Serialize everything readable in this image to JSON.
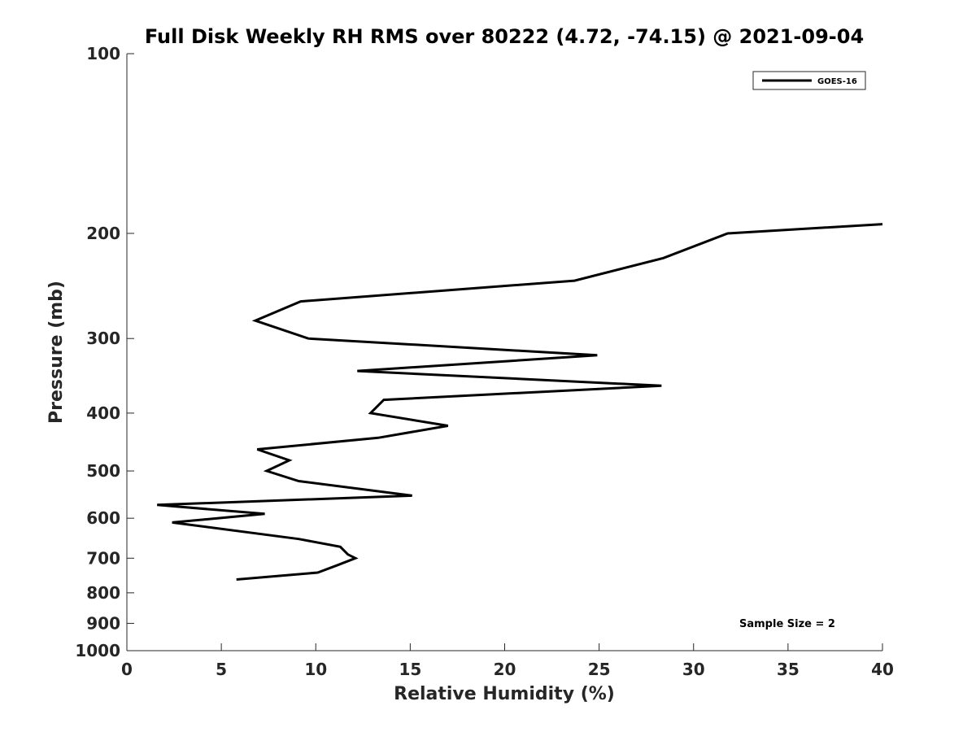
{
  "chart_data": {
    "type": "line",
    "title": "Full Disk Weekly RH RMS over 80222 (4.72, -74.15) @ 2021-09-04",
    "xlabel": "Relative Humidity (%)",
    "ylabel": "Pressure (mb)",
    "xlim": [
      0,
      40
    ],
    "ylim": [
      100,
      1000
    ],
    "y_scale": "log",
    "y_reversed": true,
    "grid": false,
    "legend_position": "top-right",
    "x_ticks": [
      0,
      5,
      10,
      15,
      20,
      25,
      30,
      35,
      40
    ],
    "y_ticks": [
      100,
      200,
      300,
      400,
      500,
      600,
      700,
      800,
      900,
      1000
    ],
    "annotation": "Sample Size = 2",
    "series": [
      {
        "name": "GOES-16",
        "color": "#000000",
        "x": [
          40.0,
          31.8,
          28.4,
          23.7,
          9.2,
          6.8,
          9.6,
          24.9,
          12.2,
          28.3,
          13.6,
          12.9,
          17.0,
          13.3,
          6.9,
          8.6,
          7.4,
          9.1,
          15.1,
          1.6,
          7.3,
          2.4,
          9.1,
          11.3,
          11.7,
          12.1,
          11.1,
          10.1,
          5.8
        ],
        "y": [
          193,
          200,
          220,
          240,
          260,
          280,
          300,
          320,
          340,
          360,
          380,
          400,
          420,
          440,
          460,
          480,
          500,
          520,
          550,
          570,
          590,
          610,
          650,
          670,
          690,
          700,
          720,
          740,
          760
        ]
      }
    ]
  }
}
